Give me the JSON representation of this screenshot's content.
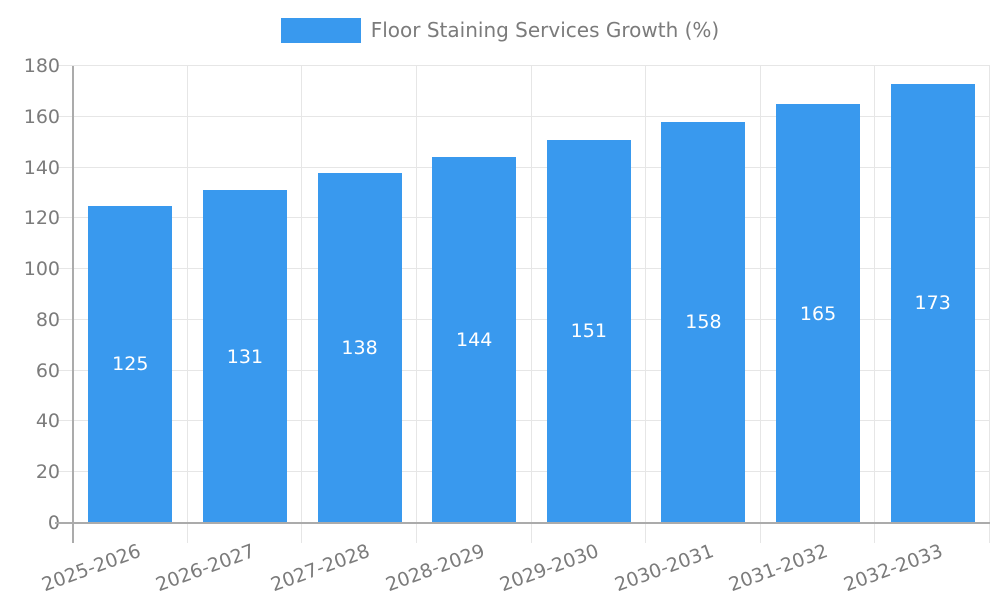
{
  "chart_data": {
    "type": "bar",
    "title": "Floor Staining Services Growth (%)",
    "categories": [
      "2025-2026",
      "2026-2027",
      "2027-2028",
      "2028-2029",
      "2029-2030",
      "2030-2031",
      "2031-2032",
      "2032-2033"
    ],
    "values": [
      125,
      131,
      138,
      144,
      151,
      158,
      165,
      173
    ],
    "value_labels_shown": true,
    "xlabel": "",
    "ylabel": "",
    "ylim": [
      0,
      180
    ],
    "yticks": [
      0,
      20,
      40,
      60,
      80,
      100,
      120,
      140,
      160,
      180
    ],
    "grid": true,
    "legend_position": "top",
    "x_label_rotation_deg": -20,
    "colors": {
      "bar": "#3999ee",
      "value_label": "#ffffff",
      "axis_line": "#ababab",
      "grid_line": "#e6e6e6",
      "text": "#7b7b7b"
    }
  }
}
